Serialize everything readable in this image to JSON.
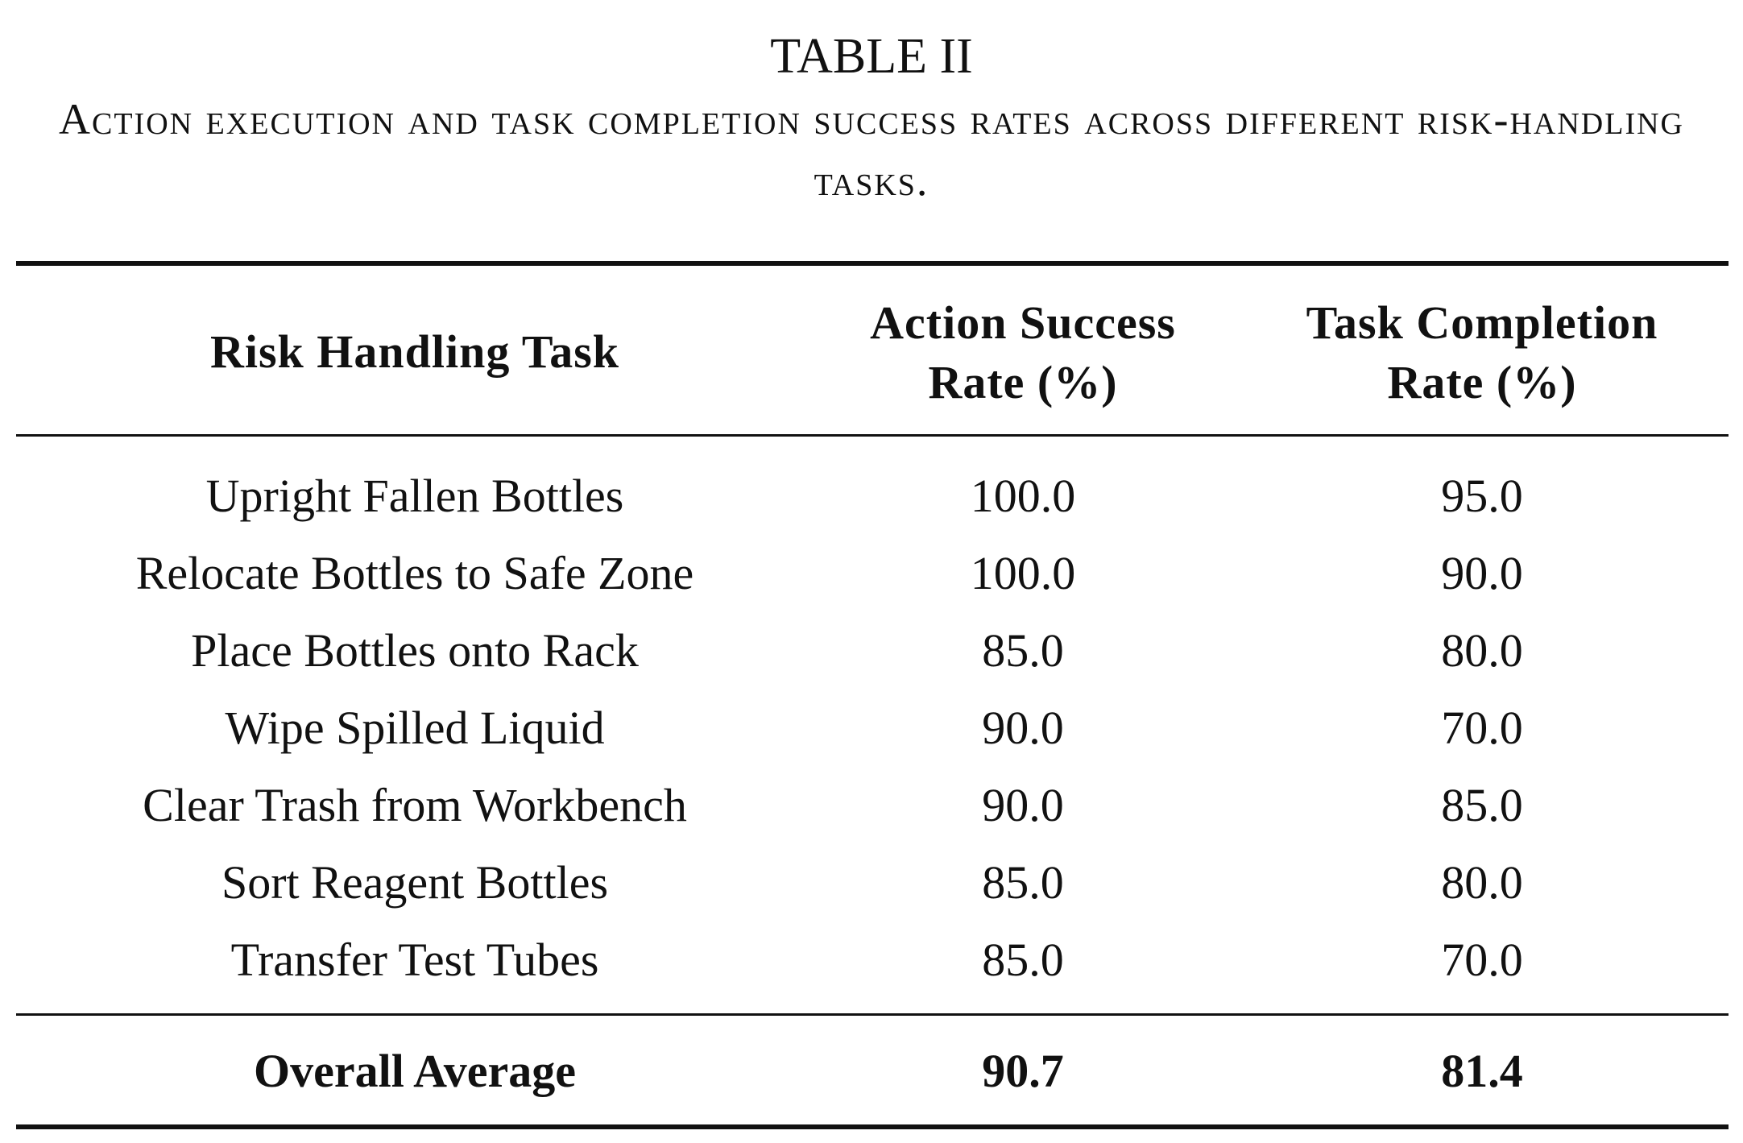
{
  "table_number": "TABLE II",
  "caption": "Action execution and task completion success rates across different risk-handling tasks.",
  "columns": {
    "task": "Risk Handling Task",
    "action": [
      "Action Success",
      "Rate (%)"
    ],
    "completion": [
      "Task Completion",
      "Rate (%)"
    ]
  },
  "rows": [
    {
      "task": "Upright Fallen Bottles",
      "action": "100.0",
      "completion": "95.0"
    },
    {
      "task": "Relocate Bottles to Safe Zone",
      "action": "100.0",
      "completion": "90.0"
    },
    {
      "task": "Place Bottles onto Rack",
      "action": "85.0",
      "completion": "80.0"
    },
    {
      "task": "Wipe Spilled Liquid",
      "action": "90.0",
      "completion": "70.0"
    },
    {
      "task": "Clear Trash from Workbench",
      "action": "90.0",
      "completion": "85.0"
    },
    {
      "task": "Sort Reagent Bottles",
      "action": "85.0",
      "completion": "80.0"
    },
    {
      "task": "Transfer Test Tubes",
      "action": "85.0",
      "completion": "70.0"
    }
  ],
  "average": {
    "task": "Overall Average",
    "action": "90.7",
    "completion": "81.4"
  }
}
